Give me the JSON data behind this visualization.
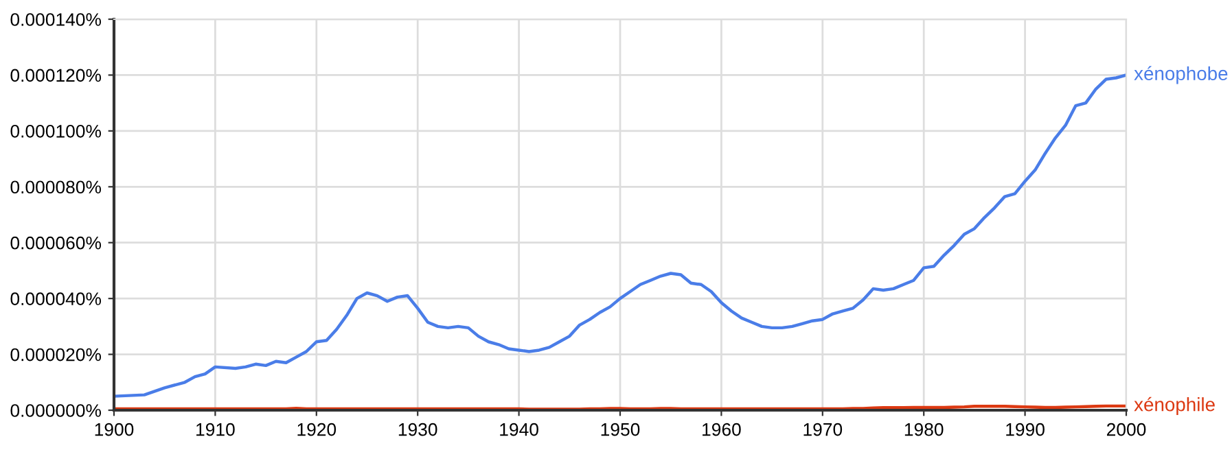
{
  "chart_data": {
    "type": "line",
    "x": [
      1900,
      1903,
      1905,
      1907,
      1908,
      1909,
      1910,
      1912,
      1913,
      1914,
      1915,
      1916,
      1917,
      1918,
      1919,
      1920,
      1921,
      1922,
      1923,
      1924,
      1925,
      1926,
      1927,
      1928,
      1929,
      1930,
      1931,
      1932,
      1933,
      1934,
      1935,
      1936,
      1937,
      1938,
      1939,
      1940,
      1941,
      1942,
      1943,
      1944,
      1945,
      1946,
      1947,
      1948,
      1949,
      1950,
      1951,
      1952,
      1953,
      1954,
      1955,
      1956,
      1957,
      1958,
      1959,
      1960,
      1961,
      1962,
      1963,
      1964,
      1965,
      1966,
      1967,
      1968,
      1969,
      1970,
      1971,
      1972,
      1973,
      1974,
      1975,
      1976,
      1977,
      1978,
      1979,
      1980,
      1981,
      1982,
      1983,
      1984,
      1985,
      1986,
      1987,
      1988,
      1989,
      1990,
      1991,
      1992,
      1993,
      1994,
      1995,
      1996,
      1997,
      1998,
      1999,
      2000
    ],
    "series": [
      {
        "name": "xénophobe",
        "color": "#4a7de8",
        "values": [
          5e-06,
          5.5e-06,
          8e-06,
          1e-05,
          1.2e-05,
          1.3e-05,
          1.55e-05,
          1.5e-05,
          1.55e-05,
          1.65e-05,
          1.6e-05,
          1.75e-05,
          1.7e-05,
          1.9e-05,
          2.1e-05,
          2.45e-05,
          2.5e-05,
          2.9e-05,
          3.4e-05,
          4e-05,
          4.2e-05,
          4.1e-05,
          3.9e-05,
          4.05e-05,
          4.1e-05,
          3.65e-05,
          3.15e-05,
          3e-05,
          2.95e-05,
          3e-05,
          2.95e-05,
          2.65e-05,
          2.45e-05,
          2.35e-05,
          2.2e-05,
          2.15e-05,
          2.1e-05,
          2.15e-05,
          2.25e-05,
          2.45e-05,
          2.65e-05,
          3.05e-05,
          3.25e-05,
          3.5e-05,
          3.7e-05,
          4e-05,
          4.25e-05,
          4.5e-05,
          4.65e-05,
          4.8e-05,
          4.9e-05,
          4.85e-05,
          4.55e-05,
          4.5e-05,
          4.25e-05,
          3.85e-05,
          3.55e-05,
          3.3e-05,
          3.15e-05,
          3e-05,
          2.95e-05,
          2.95e-05,
          3e-05,
          3.1e-05,
          3.2e-05,
          3.25e-05,
          3.45e-05,
          3.55e-05,
          3.65e-05,
          3.95e-05,
          4.35e-05,
          4.3e-05,
          4.35e-05,
          4.5e-05,
          4.65e-05,
          5.1e-05,
          5.15e-05,
          5.55e-05,
          5.9e-05,
          6.3e-05,
          6.5e-05,
          6.9e-05,
          7.25e-05,
          7.65e-05,
          7.75e-05,
          8.2e-05,
          8.6e-05,
          9.2e-05,
          9.75e-05,
          0.000102,
          0.000109,
          0.00011,
          0.000115,
          0.0001185,
          0.000119,
          0.00012
        ]
      },
      {
        "name": "xénophile",
        "color": "#dc3912",
        "values": [
          5e-07,
          5e-07,
          5e-07,
          5e-07,
          5e-07,
          5e-07,
          5e-07,
          5e-07,
          5e-07,
          5e-07,
          5e-07,
          5e-07,
          5e-07,
          7e-07,
          5e-07,
          5e-07,
          5e-07,
          5e-07,
          5e-07,
          5e-07,
          5e-07,
          5e-07,
          5e-07,
          5e-07,
          5e-07,
          5e-07,
          5e-07,
          5e-07,
          5e-07,
          5e-07,
          5e-07,
          5e-07,
          5e-07,
          5e-07,
          5e-07,
          5e-07,
          4e-07,
          4e-07,
          4e-07,
          4e-07,
          4e-07,
          4e-07,
          5e-07,
          5e-07,
          6e-07,
          6e-07,
          5e-07,
          5e-07,
          5e-07,
          6e-07,
          6e-07,
          5e-07,
          5e-07,
          5e-07,
          5e-07,
          5e-07,
          5e-07,
          5e-07,
          5e-07,
          5e-07,
          5e-07,
          5e-07,
          5e-07,
          5e-07,
          5e-07,
          5e-07,
          5e-07,
          5e-07,
          6e-07,
          6e-07,
          8e-07,
          9e-07,
          9e-07,
          9e-07,
          1e-06,
          1e-06,
          1e-06,
          1e-06,
          1.1e-06,
          1.2e-06,
          1.4e-06,
          1.4e-06,
          1.4e-06,
          1.4e-06,
          1.3e-06,
          1.2e-06,
          1.1e-06,
          1e-06,
          1e-06,
          1.1e-06,
          1.2e-06,
          1.3e-06,
          1.4e-06,
          1.5e-06,
          1.5e-06,
          1.5e-06
        ]
      }
    ],
    "xlim": [
      1900,
      2000
    ],
    "xticks": [
      1900,
      1910,
      1920,
      1930,
      1940,
      1950,
      1960,
      1970,
      1980,
      1990,
      2000
    ],
    "ylim": [
      0,
      0.00014
    ],
    "yticks": [
      {
        "value": 0,
        "label": "0.000000%"
      },
      {
        "value": 2e-05,
        "label": "0.000020%"
      },
      {
        "value": 4e-05,
        "label": "0.000040%"
      },
      {
        "value": 6e-05,
        "label": "0.000060%"
      },
      {
        "value": 8e-05,
        "label": "0.000080%"
      },
      {
        "value": 0.0001,
        "label": "0.000100%"
      },
      {
        "value": 0.00012,
        "label": "0.000120%"
      },
      {
        "value": 0.00014,
        "label": "0.000140%"
      }
    ],
    "grid": true,
    "marker": "none",
    "line_style": "solid",
    "legend": false
  }
}
